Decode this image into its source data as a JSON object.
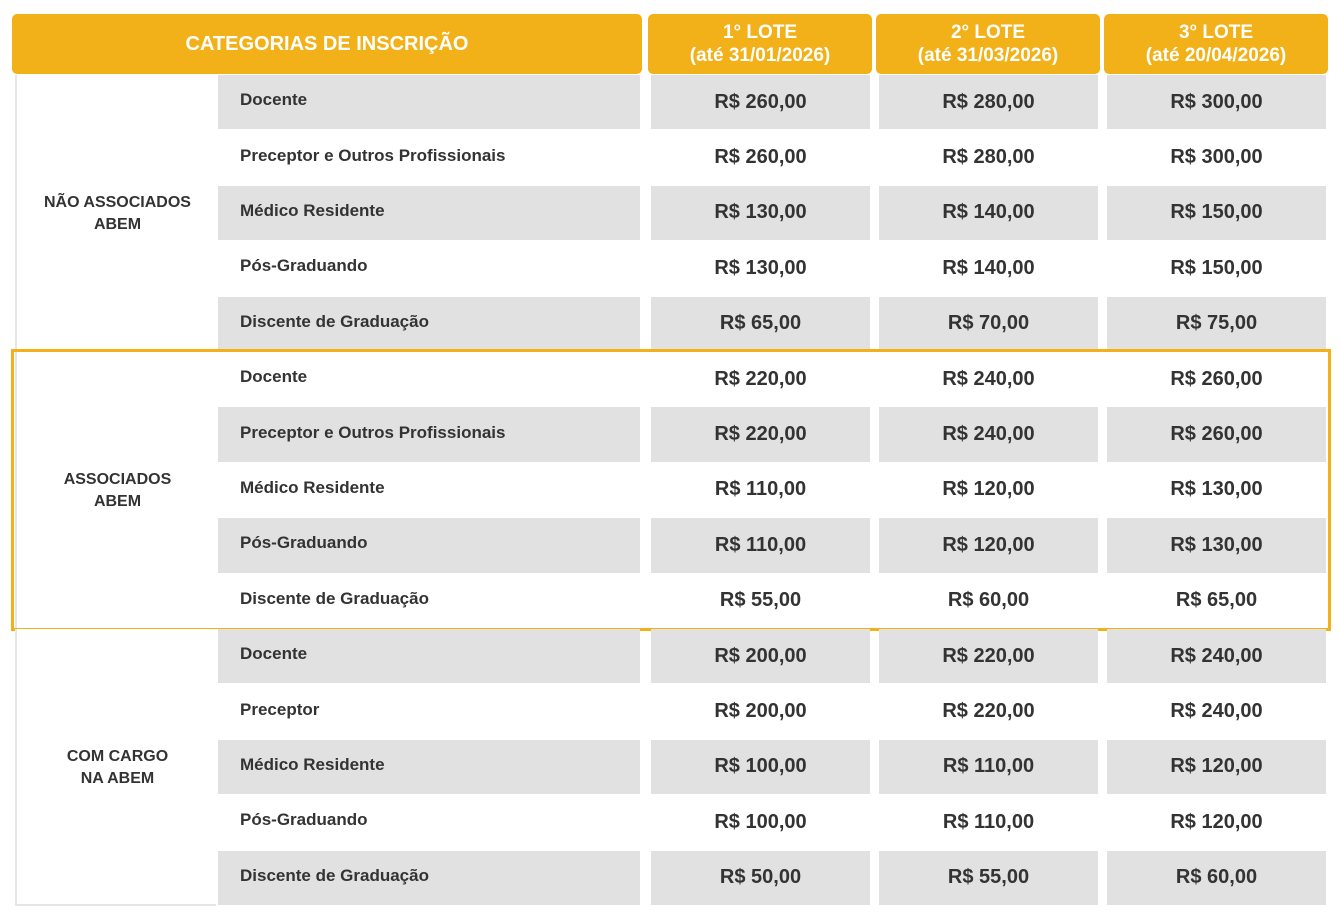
{
  "header": {
    "categories": "CATEGORIAS DE INSCRIÇÃO",
    "lots": [
      {
        "title": "1° LOTE",
        "date": "(até 31/01/2026)"
      },
      {
        "title": "2° LOTE",
        "date": "(até 31/03/2026)"
      },
      {
        "title": "3° LOTE",
        "date": "(até 20/04/2026)"
      }
    ]
  },
  "accent_color": "#f2b118",
  "groups": [
    {
      "label_lines": [
        "NÃO ASSOCIADOS",
        "ABEM"
      ],
      "rows": [
        {
          "category": "Docente",
          "prices": [
            "R$ 260,00",
            "R$ 280,00",
            "R$ 300,00"
          ]
        },
        {
          "category": "Preceptor e Outros Profissionais",
          "prices": [
            "R$ 260,00",
            "R$ 280,00",
            "R$ 300,00"
          ]
        },
        {
          "category": "Médico Residente",
          "prices": [
            "R$ 130,00",
            "R$ 140,00",
            "R$ 150,00"
          ]
        },
        {
          "category": "Pós-Graduando",
          "prices": [
            "R$ 130,00",
            "R$ 140,00",
            "R$ 150,00"
          ]
        },
        {
          "category": "Discente de Graduação",
          "prices": [
            "R$ 65,00",
            "R$ 70,00",
            "R$ 75,00"
          ]
        }
      ]
    },
    {
      "label_lines": [
        "ASSOCIADOS",
        "ABEM"
      ],
      "highlighted": true,
      "rows": [
        {
          "category": "Docente",
          "prices": [
            "R$ 220,00",
            "R$ 240,00",
            "R$ 260,00"
          ]
        },
        {
          "category": "Preceptor e Outros Profissionais",
          "prices": [
            "R$ 220,00",
            "R$ 240,00",
            "R$ 260,00"
          ]
        },
        {
          "category": "Médico Residente",
          "prices": [
            "R$ 110,00",
            "R$ 120,00",
            "R$ 130,00"
          ]
        },
        {
          "category": "Pós-Graduando",
          "prices": [
            "R$ 110,00",
            "R$ 120,00",
            "R$ 130,00"
          ]
        },
        {
          "category": "Discente de Graduação",
          "prices": [
            "R$ 55,00",
            "R$ 60,00",
            "R$ 65,00"
          ]
        }
      ]
    },
    {
      "label_lines": [
        "COM CARGO",
        "NA ABEM"
      ],
      "rows": [
        {
          "category": "Docente",
          "prices": [
            "R$ 200,00",
            "R$ 220,00",
            "R$ 240,00"
          ]
        },
        {
          "category": "Preceptor",
          "prices": [
            "R$ 200,00",
            "R$ 220,00",
            "R$ 240,00"
          ]
        },
        {
          "category": "Médico Residente",
          "prices": [
            "R$ 100,00",
            "R$ 110,00",
            "R$ 120,00"
          ]
        },
        {
          "category": "Pós-Graduando",
          "prices": [
            "R$ 100,00",
            "R$ 110,00",
            "R$ 120,00"
          ]
        },
        {
          "category": "Discente de Graduação",
          "prices": [
            "R$ 50,00",
            "R$ 55,00",
            "R$ 60,00"
          ]
        }
      ]
    }
  ]
}
